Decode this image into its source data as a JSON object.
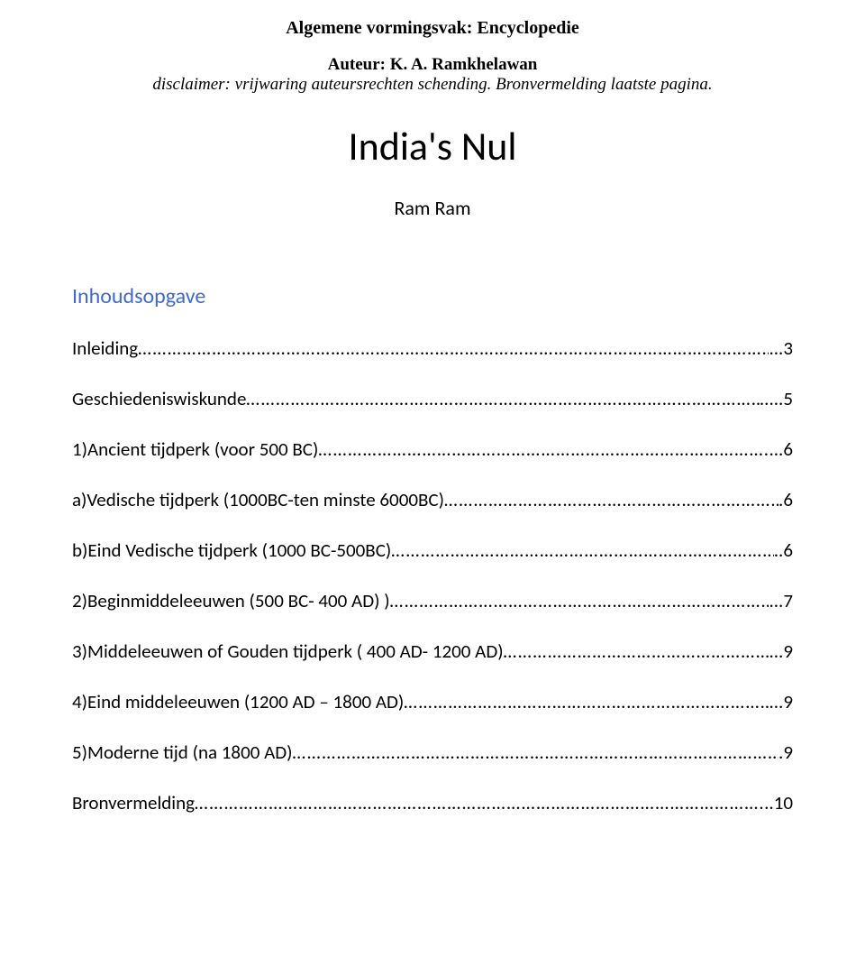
{
  "header": {
    "title": "Algemene vormingsvak: Encyclopedie",
    "author": "Auteur: K. A. Ramkhelawan",
    "disclaimer": "disclaimer: vrijwaring auteursrechten schending. Bronvermelding laatste pagina."
  },
  "main_title": "India's Nul",
  "subtitle": "Ram Ram",
  "toc": {
    "header": "Inhoudsopgave",
    "entries": [
      {
        "label": "Inleiding",
        "page": "...3"
      },
      {
        "label": "Geschiedeniswiskunde",
        "page": ".....5"
      },
      {
        "label": "1)Ancient tijdperk (voor 500 BC)",
        "page": "...6"
      },
      {
        "label": "a)Vedische tijdperk (1000BC-ten minste 6000BC)",
        "page": ".6"
      },
      {
        "label": "b)Eind Vedische tijdperk (1000 BC-500BC)",
        "page": "..6"
      },
      {
        "label": "2)Beginmiddeleeuwen (500 BC- 400 AD) )",
        "page": "...7"
      },
      {
        "label": "3)Middeleeuwen of Gouden tijdperk ( 400 AD- 1200 AD)",
        "page": "...9"
      },
      {
        "label": "4)Eind middeleeuwen (1200 AD – 1800 AD) ",
        "page": "...9"
      },
      {
        "label": "5)Moderne tijd (na 1800 AD)",
        "page": ".9"
      },
      {
        "label": "Bronvermelding",
        "page": "..10"
      }
    ]
  },
  "colors": {
    "background": "#ffffff",
    "text": "#000000",
    "toc_header": "#4169cc"
  },
  "typography": {
    "header_title_size": 20,
    "author_size": 19,
    "disclaimer_size": 19,
    "main_title_size": 44,
    "subtitle_size": 22,
    "toc_header_size": 24,
    "toc_entry_size": 21
  }
}
